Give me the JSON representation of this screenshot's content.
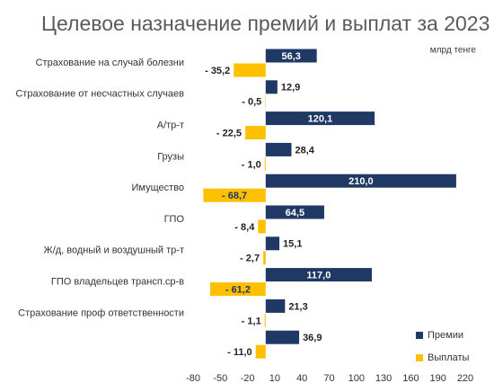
{
  "chart_data": {
    "type": "hbar",
    "title": "Целевое назначение премий и выплат за 2023 г.",
    "unit_label": "млрд тенге",
    "categories": [
      "Страхование на случай болезни",
      "Страхование от несчастных случаев",
      "А/тр-т",
      "Грузы",
      "Имущество",
      "ГПО",
      "Ж/д, водный и воздушный тр-т",
      "ГПО владельцев трансп.ср-в",
      "Страхование проф ответственности",
      null
    ],
    "series": [
      {
        "name": "Премии",
        "color": "#1f3864",
        "values": [
          56.3,
          12.9,
          120.1,
          28.4,
          210.0,
          64.5,
          15.1,
          117.0,
          21.3,
          36.9
        ],
        "value_labels": [
          "56,3",
          "12,9",
          "120,1",
          "28,4",
          "210,0",
          "64,5",
          "15,1",
          "117,0",
          "21,3",
          "36,9"
        ]
      },
      {
        "name": "Выплаты",
        "color": "#ffc000",
        "values": [
          -35.2,
          -0.5,
          -22.5,
          -1.0,
          -68.7,
          -8.4,
          -2.7,
          -61.2,
          -1.1,
          -11.0
        ],
        "value_labels": [
          "- 35,2",
          "- 0,5",
          "- 22,5",
          "- 1,0",
          "- 68,7",
          "- 8,4",
          "- 2,7",
          "- 61,2",
          "- 1,1",
          "- 11,0"
        ]
      }
    ],
    "xlim": [
      -80,
      220
    ],
    "xticks": [
      -80,
      -50,
      -20,
      10,
      40,
      70,
      100,
      130,
      160,
      190,
      220
    ],
    "legend": "lower right"
  }
}
